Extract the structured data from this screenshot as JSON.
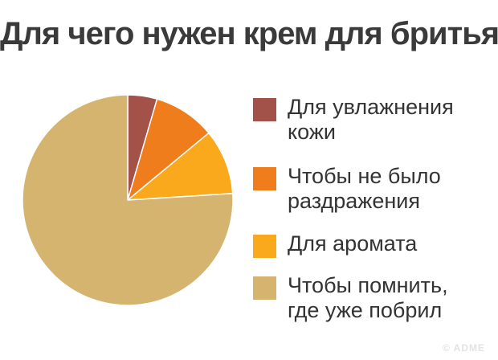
{
  "chart_data": {
    "type": "pie",
    "title": "Для чего нужен крем для бритья",
    "categories": [
      "Для увлажнения кожи",
      "Чтобы не было раздражения",
      "Для аромата",
      "Чтобы помнить, где уже побрил"
    ],
    "values": [
      4.5,
      9.5,
      10,
      76
    ],
    "colors": [
      "#a3524a",
      "#f07d1c",
      "#fba91c",
      "#d5b470"
    ],
    "legend_position": "right"
  },
  "legend": {
    "items": [
      {
        "label": "Для увлажнения кожи",
        "color": "#a3524a"
      },
      {
        "label": "Чтобы не было раздражения",
        "color": "#f07d1c"
      },
      {
        "label": "Для аромата",
        "color": "#fba91c"
      },
      {
        "label": "Чтобы помнить, где уже побрил",
        "color": "#d5b470"
      }
    ]
  },
  "watermark": "© ADME"
}
